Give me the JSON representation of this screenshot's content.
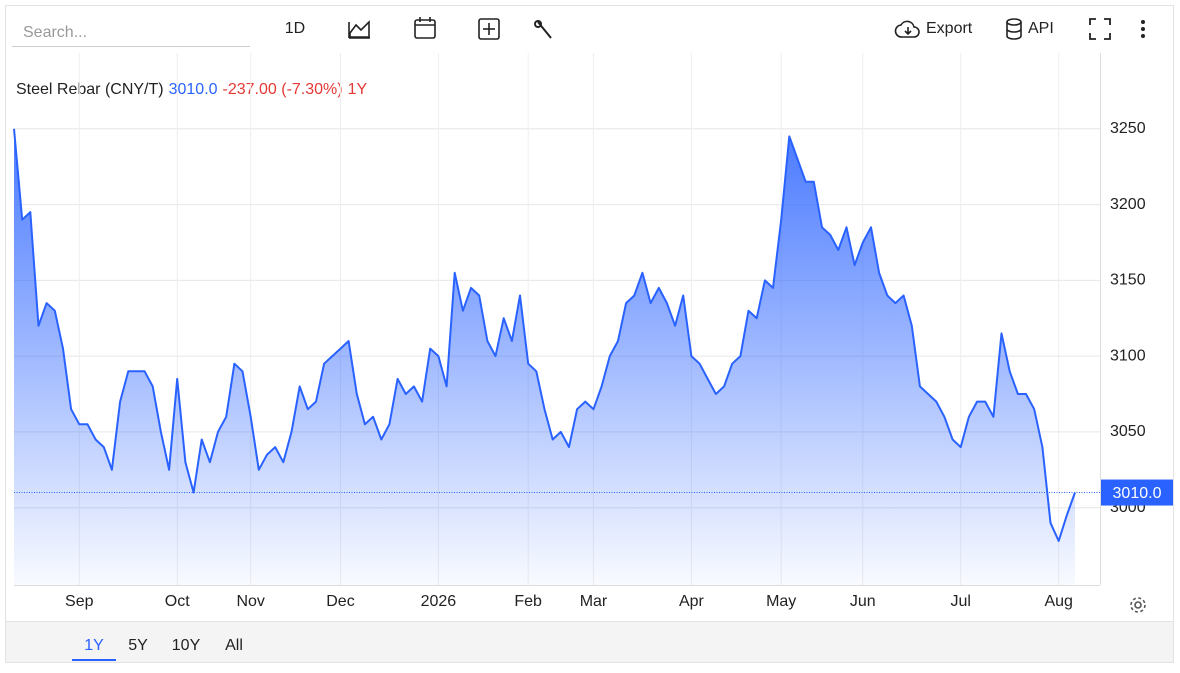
{
  "toolbar": {
    "search": "Search...",
    "interval": "1D",
    "export": "Export",
    "api": "API"
  },
  "header": {
    "name": "Steel Rebar (CNY/T)",
    "price": "3010.0",
    "change": "-237.00 (-7.30%)",
    "range": "1Y"
  },
  "chart_data": {
    "type": "area",
    "color": "#2962ff",
    "categories": [
      null,
      null,
      null,
      null,
      null,
      null,
      null,
      null,
      "Sep",
      null,
      null,
      null,
      null,
      null,
      null,
      null,
      null,
      null,
      null,
      null,
      "Oct",
      null,
      null,
      null,
      null,
      null,
      null,
      null,
      null,
      "Nov",
      null,
      null,
      null,
      null,
      null,
      null,
      null,
      null,
      null,
      null,
      "Dec",
      null,
      null,
      null,
      null,
      null,
      null,
      null,
      null,
      null,
      null,
      null,
      "2026",
      null,
      null,
      null,
      null,
      null,
      null,
      null,
      null,
      null,
      null,
      "Feb",
      null,
      null,
      null,
      null,
      null,
      null,
      null,
      "Mar",
      null,
      null,
      null,
      null,
      null,
      null,
      null,
      null,
      null,
      null,
      null,
      "Apr",
      null,
      null,
      null,
      null,
      null,
      null,
      null,
      null,
      null,
      null,
      "May",
      null,
      null,
      null,
      null,
      null,
      null,
      null,
      null,
      null,
      "Jun",
      null,
      null,
      null,
      null,
      null,
      null,
      null,
      null,
      null,
      null,
      null,
      "Jul",
      null,
      null,
      null,
      null,
      null,
      null,
      null,
      null,
      null,
      null,
      null,
      "Aug",
      null,
      null
    ],
    "values": [
      3250,
      3190,
      3195,
      3120,
      3135,
      3130,
      3105,
      3065,
      3055,
      3055,
      3045,
      3040,
      3025,
      3070,
      3090,
      3090,
      3090,
      3080,
      3050,
      3025,
      3085,
      3030,
      3010,
      3045,
      3030,
      3050,
      3060,
      3095,
      3090,
      3060,
      3025,
      3035,
      3040,
      3030,
      3050,
      3080,
      3065,
      3070,
      3095,
      3100,
      3105,
      3110,
      3075,
      3055,
      3060,
      3045,
      3055,
      3085,
      3075,
      3080,
      3070,
      3105,
      3100,
      3080,
      3155,
      3130,
      3145,
      3140,
      3110,
      3100,
      3125,
      3110,
      3140,
      3095,
      3090,
      3065,
      3045,
      3050,
      3040,
      3065,
      3070,
      3065,
      3080,
      3100,
      3110,
      3135,
      3140,
      3155,
      3135,
      3145,
      3135,
      3120,
      3140,
      3100,
      3095,
      3085,
      3075,
      3080,
      3095,
      3100,
      3130,
      3125,
      3150,
      3145,
      3190,
      3245,
      3230,
      3215,
      3215,
      3185,
      3180,
      3170,
      3185,
      3160,
      3175,
      3185,
      3155,
      3140,
      3135,
      3140,
      3120,
      3080,
      3075,
      3070,
      3060,
      3045,
      3040,
      3060,
      3070,
      3070,
      3060,
      3115,
      3090,
      3075,
      3075,
      3065,
      3040,
      2990,
      2978,
      2995,
      3010
    ],
    "ylim": [
      2949,
      3300
    ],
    "yticks": [
      3000,
      3050,
      3100,
      3150,
      3200,
      3250
    ],
    "grid": true
  },
  "ranges": [
    "1Y",
    "5Y",
    "10Y",
    "All"
  ]
}
